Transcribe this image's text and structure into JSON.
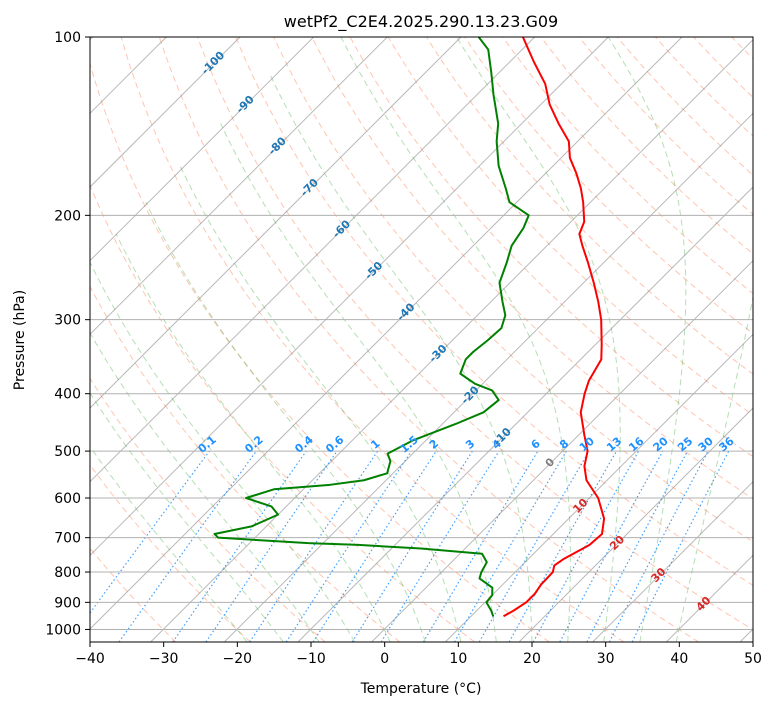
{
  "chart_data": {
    "type": "line",
    "title": "wetPf2_C2E4.2025.290.13.23.G09",
    "xlabel": "Temperature (°C)",
    "ylabel": "Pressure (hPa)",
    "xlim": [
      -40,
      50
    ],
    "ylim": [
      1050,
      100
    ],
    "y_scale": "log",
    "skew": true,
    "x_ticks": [
      -40,
      -30,
      -20,
      -10,
      0,
      10,
      20,
      30,
      40,
      50
    ],
    "y_ticks": [
      100,
      200,
      300,
      400,
      500,
      600,
      700,
      800,
      900,
      1000
    ],
    "grid": true,
    "series": [
      {
        "key": "temperature",
        "color": "#ff0000",
        "points": [
          [
            950,
            14.4
          ],
          [
            930,
            15.0
          ],
          [
            900,
            15.6
          ],
          [
            870,
            15.6
          ],
          [
            840,
            15.2
          ],
          [
            800,
            15.1
          ],
          [
            780,
            14.4
          ],
          [
            760,
            14.8
          ],
          [
            720,
            16.4
          ],
          [
            690,
            16.6
          ],
          [
            650,
            14.8
          ],
          [
            600,
            11.2
          ],
          [
            560,
            7.2
          ],
          [
            530,
            5.0
          ],
          [
            500,
            3.4
          ],
          [
            470,
            0.8
          ],
          [
            430,
            -2.8
          ],
          [
            400,
            -4.8
          ],
          [
            380,
            -6.0
          ],
          [
            350,
            -7.2
          ],
          [
            330,
            -9.2
          ],
          [
            300,
            -12.6
          ],
          [
            280,
            -15.4
          ],
          [
            260,
            -18.6
          ],
          [
            240,
            -22.2
          ],
          [
            225,
            -25.2
          ],
          [
            215,
            -27.2
          ],
          [
            205,
            -28.2
          ],
          [
            190,
            -31.0
          ],
          [
            180,
            -33.2
          ],
          [
            170,
            -35.8
          ],
          [
            160,
            -38.8
          ],
          [
            150,
            -41.2
          ],
          [
            140,
            -45.0
          ],
          [
            130,
            -48.8
          ],
          [
            120,
            -52.2
          ],
          [
            110,
            -56.8
          ],
          [
            100,
            -61.6
          ]
        ]
      },
      {
        "key": "dewpoint",
        "color": "#008000",
        "points": [
          [
            950,
            13.0
          ],
          [
            930,
            12.0
          ],
          [
            900,
            10.2
          ],
          [
            875,
            10.0
          ],
          [
            850,
            9.0
          ],
          [
            820,
            6.0
          ],
          [
            800,
            5.4
          ],
          [
            770,
            4.8
          ],
          [
            745,
            3.0
          ],
          [
            730,
            -6.0
          ],
          [
            720,
            -15.0
          ],
          [
            715,
            -22.0
          ],
          [
            700,
            -35.0
          ],
          [
            690,
            -36.0
          ],
          [
            670,
            -32.0
          ],
          [
            640,
            -30.0
          ],
          [
            620,
            -32.0
          ],
          [
            600,
            -36.6
          ],
          [
            580,
            -34.0
          ],
          [
            570,
            -27.0
          ],
          [
            560,
            -23.0
          ],
          [
            545,
            -20.8
          ],
          [
            520,
            -22.0
          ],
          [
            505,
            -23.4
          ],
          [
            480,
            -21.8
          ],
          [
            450,
            -18.2
          ],
          [
            430,
            -16.0
          ],
          [
            410,
            -15.6
          ],
          [
            395,
            -17.8
          ],
          [
            385,
            -21.0
          ],
          [
            370,
            -24.4
          ],
          [
            350,
            -25.6
          ],
          [
            340,
            -25.6
          ],
          [
            325,
            -25.2
          ],
          [
            310,
            -25.0
          ],
          [
            295,
            -26.2
          ],
          [
            280,
            -28.4
          ],
          [
            260,
            -31.4
          ],
          [
            240,
            -33.2
          ],
          [
            225,
            -34.8
          ],
          [
            210,
            -35.6
          ],
          [
            200,
            -36.6
          ],
          [
            190,
            -41.0
          ],
          [
            180,
            -43.4
          ],
          [
            165,
            -47.4
          ],
          [
            150,
            -51.0
          ],
          [
            140,
            -53.2
          ],
          [
            125,
            -57.8
          ],
          [
            115,
            -61.0
          ],
          [
            105,
            -64.6
          ],
          [
            100,
            -67.6
          ]
        ]
      }
    ],
    "isotherm_labels": [
      "-100",
      "-90",
      "-80",
      "-70",
      "-60",
      "-50",
      "-40",
      "-30",
      "-20",
      "-10",
      "0",
      "10",
      "20",
      "30",
      "40"
    ],
    "mixing_ratio_labels": [
      "0.1",
      "0.2",
      "0.4",
      "0.6",
      "1",
      "1.5",
      "2",
      "3",
      "4",
      "6",
      "8",
      "10",
      "13",
      "16",
      "20",
      "25",
      "30",
      "36"
    ],
    "colors": {
      "temperature": "#ff0000",
      "dewpoint": "#008000",
      "isotherm_label_cold": "#1f77b4",
      "isotherm_label_zero": "#808080",
      "isotherm_label_warm": "#d62728",
      "mixing_ratio": "#1e90ff",
      "dry_adiabat": "#ff7f50",
      "moist_adiabat": "#2ca02c",
      "isotherm": "#808080"
    }
  }
}
